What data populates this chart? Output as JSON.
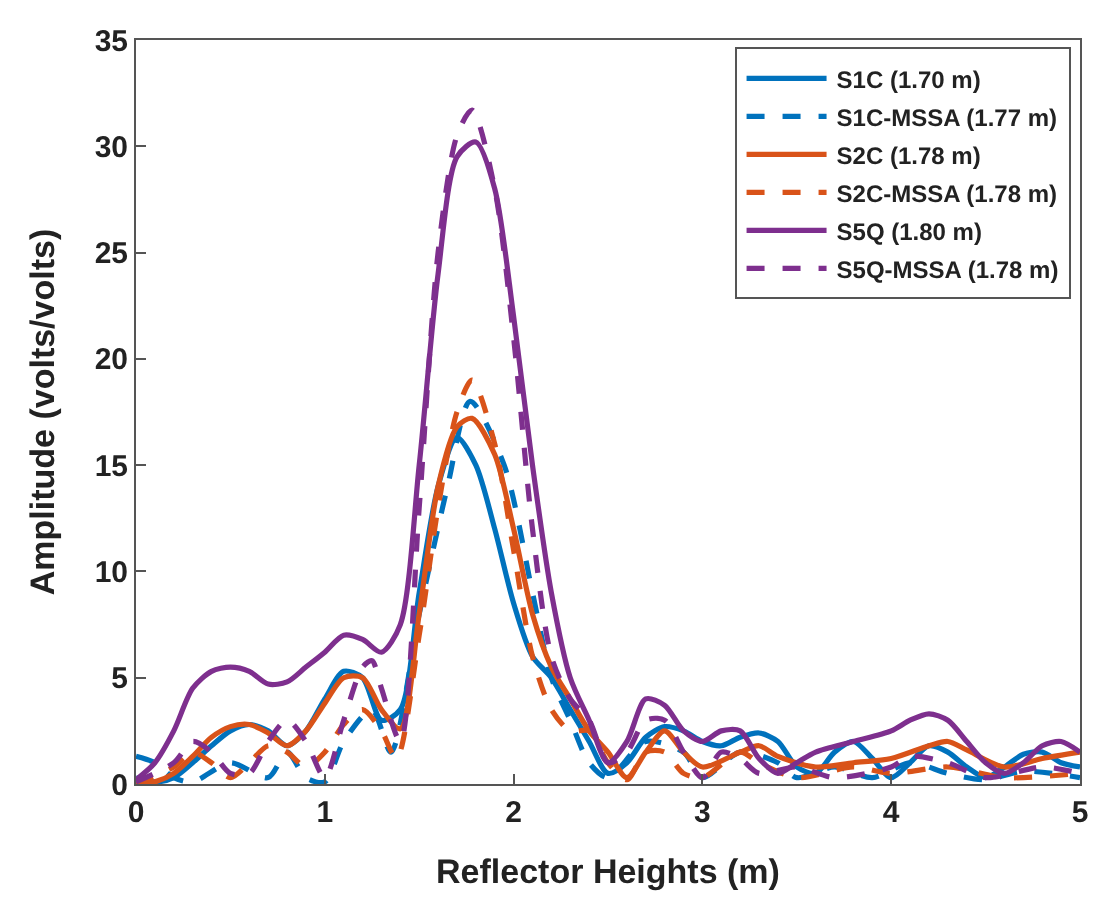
{
  "chart_data": {
    "type": "line",
    "xlabel": "Reflector Heights (m)",
    "ylabel": "Amplitude (volts/volts)",
    "xlim": [
      0,
      5
    ],
    "ylim": [
      0,
      35
    ],
    "xticks": [
      0,
      1,
      2,
      3,
      4,
      5
    ],
    "yticks": [
      0,
      5,
      10,
      15,
      20,
      25,
      30,
      35
    ],
    "legend": "top right",
    "series": [
      {
        "name": "S1C (1.70 m)",
        "color": "#0072bd",
        "line_style": "solid",
        "x": [
          0,
          0.1,
          0.2,
          0.3,
          0.4,
          0.5,
          0.6,
          0.7,
          0.8,
          0.9,
          1.0,
          1.1,
          1.2,
          1.3,
          1.4,
          1.5,
          1.6,
          1.7,
          1.8,
          1.9,
          2.0,
          2.1,
          2.2,
          2.3,
          2.4,
          2.5,
          2.6,
          2.7,
          2.8,
          2.9,
          3.0,
          3.1,
          3.2,
          3.3,
          3.4,
          3.5,
          3.6,
          3.7,
          3.8,
          3.9,
          4.0,
          4.1,
          4.2,
          4.3,
          4.4,
          4.5,
          4.6,
          4.7,
          4.8,
          4.9,
          5.0
        ],
        "values": [
          0.3,
          0.1,
          0.3,
          1.0,
          1.8,
          2.5,
          2.8,
          2.5,
          1.8,
          2.5,
          4.0,
          5.3,
          5.0,
          3.0,
          3.5,
          9,
          14,
          16.3,
          15,
          12,
          8.5,
          6,
          5,
          3.5,
          2,
          0.5,
          1.0,
          2.2,
          2.7,
          2.5,
          2.0,
          1.8,
          2.2,
          2.4,
          2.0,
          0.8,
          0.5,
          1.5,
          2.0,
          1.2,
          0.3,
          1.0,
          1.8,
          1.5,
          0.8,
          0.3,
          0.8,
          1.4,
          1.5,
          1.0,
          0.8
        ]
      },
      {
        "name": "S1C-MSSA (1.77 m)",
        "color": "#0072bd",
        "line_style": "dashed",
        "x": [
          0,
          0.1,
          0.2,
          0.3,
          0.5,
          0.7,
          0.8,
          0.9,
          1.0,
          1.1,
          1.25,
          1.35,
          1.5,
          1.65,
          1.77,
          1.95,
          2.1,
          2.2,
          2.3,
          2.4,
          2.5,
          2.7,
          2.9,
          3.0,
          3.2,
          3.4,
          3.5,
          3.7,
          3.9,
          4.1,
          4.3,
          4.5,
          4.7,
          5.0
        ],
        "values": [
          1.3,
          1.0,
          0.3,
          0.1,
          1.0,
          0.3,
          1.5,
          0.3,
          0.1,
          2.0,
          3.5,
          1.5,
          8,
          14,
          18,
          15,
          9,
          5,
          3,
          1,
          0.3,
          2,
          1.5,
          0.3,
          1.5,
          1,
          0.3,
          0.8,
          0.3,
          1.0,
          0.5,
          0.2,
          0.6,
          0.3
        ]
      },
      {
        "name": "S2C (1.78 m)",
        "color": "#d95319",
        "line_style": "solid",
        "x": [
          0,
          0.1,
          0.2,
          0.3,
          0.4,
          0.5,
          0.6,
          0.7,
          0.8,
          0.9,
          1.0,
          1.1,
          1.2,
          1.3,
          1.4,
          1.5,
          1.6,
          1.7,
          1.78,
          1.9,
          2.0,
          2.1,
          2.2,
          2.3,
          2.4,
          2.5,
          2.6,
          2.7,
          2.8,
          2.9,
          3.0,
          3.2,
          3.3,
          3.4,
          3.6,
          3.8,
          4.0,
          4.2,
          4.3,
          4.4,
          4.6,
          4.8,
          5.0
        ],
        "values": [
          0,
          0.1,
          0.5,
          1.3,
          2.2,
          2.7,
          2.8,
          2.4,
          1.8,
          2.5,
          3.8,
          5.0,
          5.0,
          3.5,
          2.6,
          8,
          14,
          16.8,
          17.2,
          15.5,
          12,
          8,
          5.5,
          4,
          2.5,
          1.5,
          0.3,
          1.5,
          2.5,
          1.5,
          0.8,
          1.5,
          1.8,
          1.3,
          0.8,
          1.0,
          1.2,
          1.8,
          2.0,
          1.6,
          0.8,
          1.2,
          1.5
        ]
      },
      {
        "name": "S2C-MSSA (1.78 m)",
        "color": "#d95319",
        "line_style": "dashed",
        "x": [
          0,
          0.2,
          0.3,
          0.4,
          0.5,
          0.6,
          0.7,
          0.8,
          0.9,
          1.0,
          1.1,
          1.2,
          1.3,
          1.38,
          1.5,
          1.6,
          1.7,
          1.78,
          1.9,
          2.0,
          2.1,
          2.2,
          2.3,
          2.4,
          2.5,
          2.6,
          2.7,
          2.8,
          2.9,
          3.0,
          3.2,
          3.3,
          3.5,
          3.8,
          4.0,
          4.3,
          4.6,
          5.0
        ],
        "values": [
          0,
          0.8,
          1.5,
          1.0,
          0.3,
          1.0,
          1.8,
          1.5,
          0.8,
          1.5,
          2.8,
          3.5,
          2.5,
          1.2,
          7,
          13,
          17.5,
          19,
          16,
          11,
          6,
          3.5,
          2.5,
          2.5,
          1.0,
          0.2,
          1.5,
          1.5,
          0.5,
          0.3,
          1.5,
          1.0,
          0.3,
          0.8,
          0.5,
          0.8,
          0.3,
          0.5
        ]
      },
      {
        "name": "S5Q (1.80 m)",
        "color": "#7e2f8e",
        "line_style": "solid",
        "x": [
          0,
          0.1,
          0.2,
          0.3,
          0.4,
          0.5,
          0.6,
          0.7,
          0.8,
          0.9,
          1.0,
          1.1,
          1.2,
          1.3,
          1.4,
          1.5,
          1.6,
          1.7,
          1.8,
          1.9,
          2.0,
          2.1,
          2.2,
          2.3,
          2.4,
          2.5,
          2.6,
          2.7,
          2.8,
          2.9,
          3.0,
          3.1,
          3.2,
          3.3,
          3.4,
          3.5,
          3.6,
          3.8,
          4.0,
          4.1,
          4.2,
          4.3,
          4.4,
          4.5,
          4.6,
          4.7,
          4.8,
          4.9,
          5.0
        ],
        "values": [
          0.2,
          1.0,
          2.5,
          4.5,
          5.3,
          5.5,
          5.3,
          4.7,
          4.8,
          5.5,
          6.2,
          7.0,
          6.8,
          6.2,
          7.5,
          15,
          24,
          29.5,
          30.2,
          28,
          22,
          15,
          9,
          5,
          3,
          1.0,
          2.0,
          4.0,
          3.7,
          2.5,
          2.0,
          2.5,
          2.5,
          1.2,
          0.5,
          1.0,
          1.5,
          2.0,
          2.5,
          3.0,
          3.3,
          3.0,
          2.0,
          1.0,
          0.5,
          1.0,
          1.8,
          2.0,
          1.5
        ]
      },
      {
        "name": "S5Q-MSSA (1.78 m)",
        "color": "#7e2f8e",
        "line_style": "dashed",
        "x": [
          0,
          0.2,
          0.3,
          0.4,
          0.5,
          0.6,
          0.7,
          0.8,
          0.9,
          1.0,
          1.1,
          1.2,
          1.25,
          1.3,
          1.4,
          1.5,
          1.6,
          1.7,
          1.78,
          1.9,
          2.0,
          2.1,
          2.2,
          2.3,
          2.4,
          2.5,
          2.6,
          2.7,
          2.8,
          2.9,
          3.0,
          3.1,
          3.2,
          3.3,
          3.5,
          3.7,
          4.0,
          4.1,
          4.3,
          4.5,
          4.8,
          5.0
        ],
        "values": [
          0.1,
          1.0,
          2.0,
          1.5,
          0.5,
          0.5,
          2.0,
          3.0,
          2.0,
          0.3,
          3.0,
          5.5,
          5.8,
          4.5,
          2.0,
          13,
          25,
          30.5,
          31.7,
          28,
          21,
          12,
          6,
          4,
          3,
          1.0,
          1.5,
          3.0,
          3.0,
          1.5,
          0.3,
          1.5,
          1.2,
          0.5,
          0.8,
          0.3,
          0.8,
          1.3,
          1.0,
          0.3,
          0.8,
          0.5
        ]
      }
    ]
  }
}
